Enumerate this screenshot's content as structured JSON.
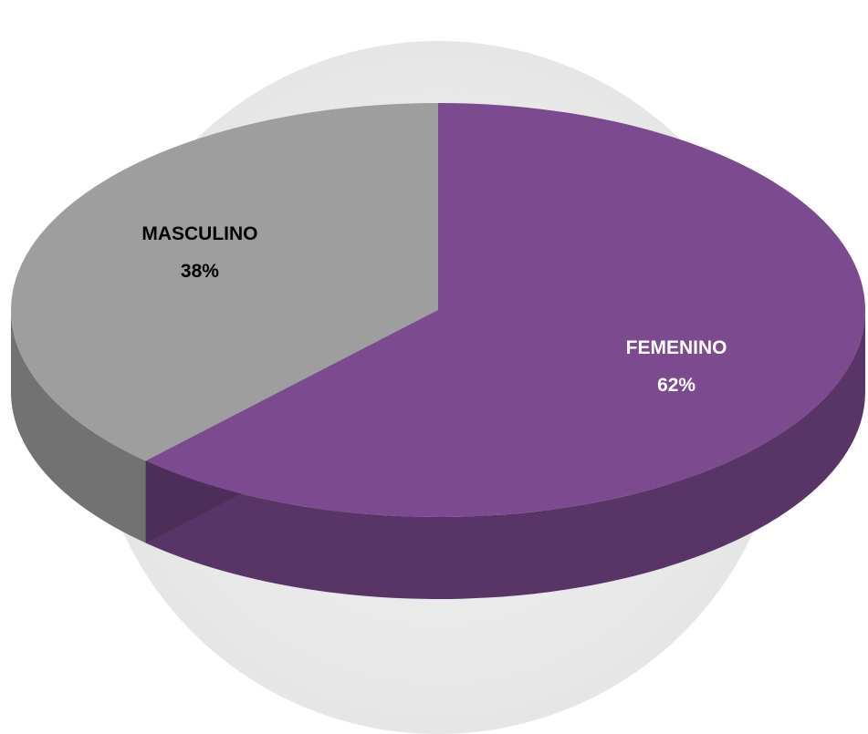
{
  "chart_data": {
    "type": "pie",
    "categories": [
      "FEMENINO",
      "MASCULINO"
    ],
    "values": [
      62,
      38
    ],
    "value_labels": [
      "62%",
      "38%"
    ],
    "colors": [
      "#7b4a8f",
      "#9e9e9e"
    ]
  }
}
